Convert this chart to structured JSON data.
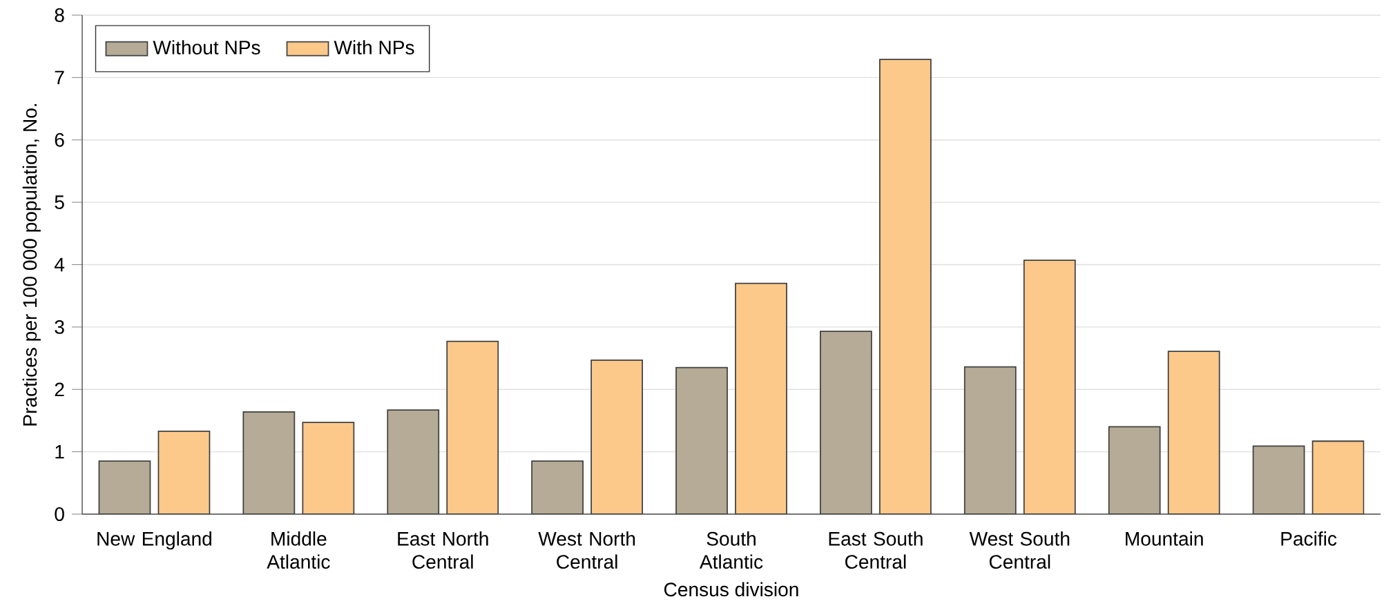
{
  "chart_data": {
    "type": "bar",
    "xlabel": "Census division",
    "ylabel": "Practices per 100 000 population, No.",
    "categories": [
      "New England",
      "Middle Atlantic",
      "East North Central",
      "West North Central",
      "South Atlantic",
      "East South Central",
      "West South Central",
      "Mountain",
      "Pacific"
    ],
    "series": [
      {
        "name": "Without NPs",
        "color": "#b5ab96",
        "values": [
          0.85,
          1.64,
          1.67,
          0.85,
          2.35,
          2.93,
          2.36,
          1.4,
          1.09
        ]
      },
      {
        "name": "With NPs",
        "color": "#fdc98a",
        "values": [
          1.33,
          1.47,
          2.77,
          2.47,
          3.7,
          7.29,
          4.07,
          2.61,
          1.17
        ]
      }
    ],
    "ylim": [
      0,
      8
    ],
    "yticks": [
      0,
      1,
      2,
      3,
      4,
      5,
      6,
      7,
      8
    ],
    "grid": "y",
    "legend": "top left"
  }
}
